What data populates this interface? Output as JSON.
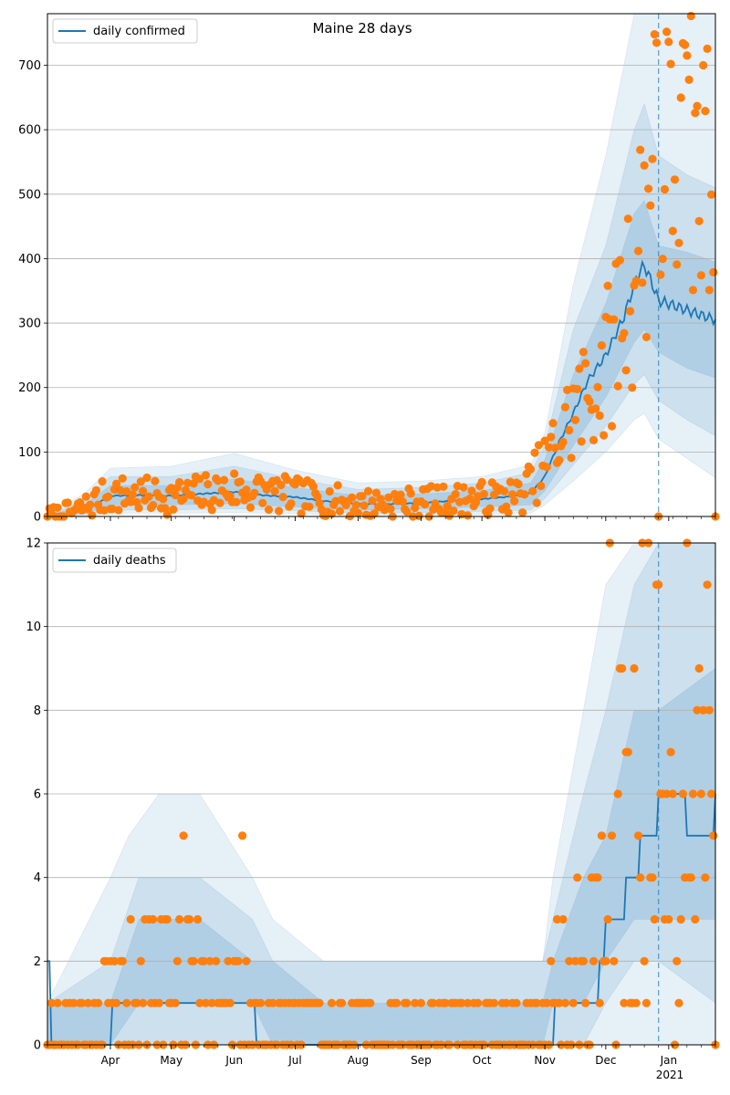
{
  "colors": {
    "series_line": "#1f77b4",
    "observed_points": "#ff7f0e",
    "band": "#1f77b4",
    "grid": "#b0b0b0",
    "today_line": "#1f77b4"
  },
  "x_axis": {
    "start_date": "2020-03-01",
    "end_date": "2021-01-24",
    "month_ticks": [
      "2020-04-01",
      "2020-05-01",
      "2020-06-01",
      "2020-07-01",
      "2020-08-01",
      "2020-09-01",
      "2020-10-01",
      "2020-11-01",
      "2020-12-01",
      "2021-01-01"
    ],
    "month_labels": [
      "Apr",
      "May",
      "Jun",
      "Jul",
      "Aug",
      "Sep",
      "Oct",
      "Nov",
      "Dec",
      "Jan"
    ],
    "year_label": "2021",
    "forecast_start": "2020-12-27"
  },
  "chart_data": [
    {
      "type": "line",
      "title": "Maine 28 days",
      "legend": "daily confirmed",
      "legend_position": "top-left",
      "grid": true,
      "ylim": [
        0,
        780
      ],
      "yticks": [
        0,
        100,
        200,
        300,
        400,
        500,
        600,
        700
      ],
      "line_anchors": [
        [
          "2020-03-01",
          0
        ],
        [
          "2020-03-10",
          3
        ],
        [
          "2020-03-20",
          10
        ],
        [
          "2020-04-01",
          32
        ],
        [
          "2020-04-15",
          33
        ],
        [
          "2020-05-01",
          32
        ],
        [
          "2020-05-15",
          35
        ],
        [
          "2020-06-01",
          38
        ],
        [
          "2020-06-15",
          33
        ],
        [
          "2020-07-01",
          30
        ],
        [
          "2020-07-15",
          24
        ],
        [
          "2020-08-01",
          20
        ],
        [
          "2020-08-15",
          19
        ],
        [
          "2020-09-01",
          21
        ],
        [
          "2020-09-15",
          24
        ],
        [
          "2020-10-01",
          27
        ],
        [
          "2020-10-15",
          31
        ],
        [
          "2020-10-25",
          36
        ],
        [
          "2020-11-01",
          62
        ],
        [
          "2020-11-08",
          115
        ],
        [
          "2020-11-15",
          160
        ],
        [
          "2020-11-22",
          210
        ],
        [
          "2020-12-01",
          250
        ],
        [
          "2020-12-10",
          310
        ],
        [
          "2020-12-16",
          370
        ],
        [
          "2020-12-20",
          390
        ],
        [
          "2020-12-24",
          360
        ],
        [
          "2020-12-27",
          335
        ],
        [
          "2021-01-01",
          330
        ],
        [
          "2021-01-10",
          320
        ],
        [
          "2021-01-24",
          305
        ]
      ],
      "band_inner": [
        [
          "2020-03-01",
          0,
          0
        ],
        [
          "2020-03-20",
          5,
          20
        ],
        [
          "2020-04-01",
          18,
          48
        ],
        [
          "2020-05-01",
          18,
          48
        ],
        [
          "2020-06-01",
          20,
          58
        ],
        [
          "2020-07-01",
          15,
          45
        ],
        [
          "2020-08-01",
          10,
          32
        ],
        [
          "2020-09-01",
          12,
          35
        ],
        [
          "2020-10-01",
          15,
          40
        ],
        [
          "2020-10-25",
          18,
          52
        ],
        [
          "2020-11-01",
          40,
          88
        ],
        [
          "2020-11-15",
          110,
          220
        ],
        [
          "2020-12-01",
          185,
          330
        ],
        [
          "2020-12-15",
          270,
          470
        ],
        [
          "2020-12-20",
          290,
          490
        ],
        [
          "2020-12-27",
          255,
          420
        ],
        [
          "2021-01-10",
          230,
          410
        ],
        [
          "2021-01-24",
          215,
          395
        ]
      ],
      "band_mid": [
        [
          "2020-03-01",
          0,
          0
        ],
        [
          "2020-03-20",
          3,
          28
        ],
        [
          "2020-04-01",
          10,
          62
        ],
        [
          "2020-05-01",
          10,
          62
        ],
        [
          "2020-06-01",
          12,
          78
        ],
        [
          "2020-07-01",
          9,
          58
        ],
        [
          "2020-08-01",
          5,
          42
        ],
        [
          "2020-09-01",
          6,
          45
        ],
        [
          "2020-10-01",
          8,
          52
        ],
        [
          "2020-10-25",
          10,
          68
        ],
        [
          "2020-11-01",
          28,
          110
        ],
        [
          "2020-11-15",
          80,
          290
        ],
        [
          "2020-12-01",
          140,
          420
        ],
        [
          "2020-12-15",
          205,
          600
        ],
        [
          "2020-12-20",
          220,
          640
        ],
        [
          "2020-12-27",
          180,
          560
        ],
        [
          "2021-01-10",
          150,
          530
        ],
        [
          "2021-01-24",
          125,
          510
        ]
      ],
      "band_outer": [
        [
          "2020-03-01",
          0,
          0
        ],
        [
          "2020-03-20",
          1,
          38
        ],
        [
          "2020-04-01",
          5,
          75
        ],
        [
          "2020-05-01",
          5,
          78
        ],
        [
          "2020-06-01",
          6,
          98
        ],
        [
          "2020-07-01",
          4,
          72
        ],
        [
          "2020-08-01",
          2,
          52
        ],
        [
          "2020-09-01",
          2,
          55
        ],
        [
          "2020-10-01",
          3,
          62
        ],
        [
          "2020-10-25",
          5,
          80
        ],
        [
          "2020-11-01",
          18,
          130
        ],
        [
          "2020-11-15",
          55,
          360
        ],
        [
          "2020-12-01",
          100,
          560
        ],
        [
          "2020-12-15",
          150,
          780
        ],
        [
          "2020-12-20",
          160,
          780
        ],
        [
          "2020-12-27",
          120,
          780
        ],
        [
          "2021-01-10",
          90,
          780
        ],
        [
          "2021-01-24",
          60,
          780
        ]
      ],
      "observed_anchors": [
        [
          "2020-03-01",
          0
        ],
        [
          "2020-03-15",
          8
        ],
        [
          "2020-04-01",
          35
        ],
        [
          "2020-05-01",
          30
        ],
        [
          "2020-06-01",
          42
        ],
        [
          "2020-07-01",
          32
        ],
        [
          "2020-08-01",
          20
        ],
        [
          "2020-09-01",
          22
        ],
        [
          "2020-10-01",
          28
        ],
        [
          "2020-10-20",
          32
        ],
        [
          "2020-11-01",
          80
        ],
        [
          "2020-11-15",
          160
        ],
        [
          "2020-12-01",
          230
        ],
        [
          "2020-12-15",
          390
        ],
        [
          "2020-12-25",
          520
        ],
        [
          "2021-01-05",
          560
        ],
        [
          "2021-01-24",
          500
        ]
      ],
      "observed_spread_rel": 0.45,
      "observed_spread_abs": 14,
      "observed_seed": 7,
      "observed_fixed": [
        [
          "2020-12-25",
          748
        ],
        [
          "2020-12-26",
          735
        ],
        [
          "2020-12-27",
          0
        ],
        [
          "2021-01-02",
          702
        ],
        [
          "2021-01-10",
          715
        ],
        [
          "2021-01-18",
          700
        ],
        [
          "2021-01-24",
          0
        ]
      ]
    },
    {
      "type": "line",
      "legend": "daily deaths",
      "legend_position": "top-left",
      "grid": true,
      "ylim": [
        0,
        12
      ],
      "yticks": [
        0,
        2,
        4,
        6,
        8,
        10,
        12
      ],
      "step": true,
      "line_anchors": [
        [
          "2020-03-01",
          2
        ],
        [
          "2020-03-03",
          0
        ],
        [
          "2020-04-01",
          0
        ],
        [
          "2020-04-02",
          1
        ],
        [
          "2020-06-11",
          1
        ],
        [
          "2020-06-12",
          0
        ],
        [
          "2020-11-05",
          0
        ],
        [
          "2020-11-06",
          1
        ],
        [
          "2020-11-27",
          1
        ],
        [
          "2020-11-28",
          2
        ],
        [
          "2020-12-01",
          3
        ],
        [
          "2020-12-10",
          3
        ],
        [
          "2020-12-11",
          4
        ],
        [
          "2020-12-18",
          5
        ],
        [
          "2020-12-27",
          6
        ],
        [
          "2021-01-10",
          5
        ],
        [
          "2021-01-24",
          6
        ]
      ],
      "band_inner": [
        [
          "2020-03-01",
          0,
          1
        ],
        [
          "2020-04-01",
          0,
          1
        ],
        [
          "2020-04-15",
          1,
          3
        ],
        [
          "2020-05-15",
          1,
          3
        ],
        [
          "2020-06-10",
          1,
          2
        ],
        [
          "2020-06-20",
          0,
          2
        ],
        [
          "2020-07-15",
          0,
          1
        ],
        [
          "2020-10-31",
          0,
          1
        ],
        [
          "2020-11-05",
          1,
          2
        ],
        [
          "2020-11-20",
          1,
          4
        ],
        [
          "2020-12-01",
          2,
          5
        ],
        [
          "2020-12-15",
          3,
          8
        ],
        [
          "2020-12-27",
          3,
          8
        ],
        [
          "2021-01-24",
          3,
          9
        ]
      ],
      "band_mid": [
        [
          "2020-03-01",
          0,
          1
        ],
        [
          "2020-04-01",
          0,
          2
        ],
        [
          "2020-04-15",
          0,
          4
        ],
        [
          "2020-05-15",
          0,
          4
        ],
        [
          "2020-06-10",
          0,
          3
        ],
        [
          "2020-06-20",
          0,
          2
        ],
        [
          "2020-10-31",
          0,
          2
        ],
        [
          "2020-11-05",
          0,
          3
        ],
        [
          "2020-11-20",
          0,
          6
        ],
        [
          "2020-12-01",
          1,
          8
        ],
        [
          "2020-12-15",
          2,
          11
        ],
        [
          "2020-12-27",
          2,
          12
        ],
        [
          "2021-01-24",
          1,
          12
        ]
      ],
      "band_outer": [
        [
          "2020-03-01",
          0,
          1
        ],
        [
          "2020-04-01",
          0,
          4
        ],
        [
          "2020-04-10",
          0,
          5
        ],
        [
          "2020-04-25",
          0,
          6
        ],
        [
          "2020-05-15",
          0,
          6
        ],
        [
          "2020-06-10",
          0,
          4
        ],
        [
          "2020-06-20",
          0,
          3
        ],
        [
          "2020-07-15",
          0,
          2
        ],
        [
          "2020-10-31",
          0,
          2
        ],
        [
          "2020-11-05",
          0,
          4
        ],
        [
          "2020-11-20",
          0,
          8
        ],
        [
          "2020-12-01",
          0,
          11
        ],
        [
          "2020-12-15",
          0,
          12
        ],
        [
          "2021-01-24",
          0,
          12
        ]
      ],
      "observed_anchors": [
        [
          "2020-03-01",
          0
        ],
        [
          "2020-04-01",
          0.8
        ],
        [
          "2020-04-25",
          1.6
        ],
        [
          "2020-05-15",
          1.2
        ],
        [
          "2020-06-10",
          0.8
        ],
        [
          "2020-07-01",
          0.5
        ],
        [
          "2020-08-01",
          0.4
        ],
        [
          "2020-09-01",
          0.3
        ],
        [
          "2020-10-01",
          0.3
        ],
        [
          "2020-11-01",
          0.5
        ],
        [
          "2020-11-15",
          1.5
        ],
        [
          "2020-12-01",
          3
        ],
        [
          "2020-12-15",
          6
        ],
        [
          "2021-01-01",
          5.5
        ],
        [
          "2021-01-24",
          5
        ]
      ],
      "observed_integer": true,
      "observed_spread_rel": 0.9,
      "observed_spread_abs": 0.8,
      "observed_seed": 19,
      "observed_fixed": [
        [
          "2020-05-07",
          5
        ],
        [
          "2020-06-05",
          5
        ],
        [
          "2020-12-03",
          12
        ],
        [
          "2020-12-19",
          12
        ],
        [
          "2021-01-10",
          12
        ],
        [
          "2021-01-20",
          11
        ],
        [
          "2021-01-24",
          0
        ]
      ]
    }
  ]
}
